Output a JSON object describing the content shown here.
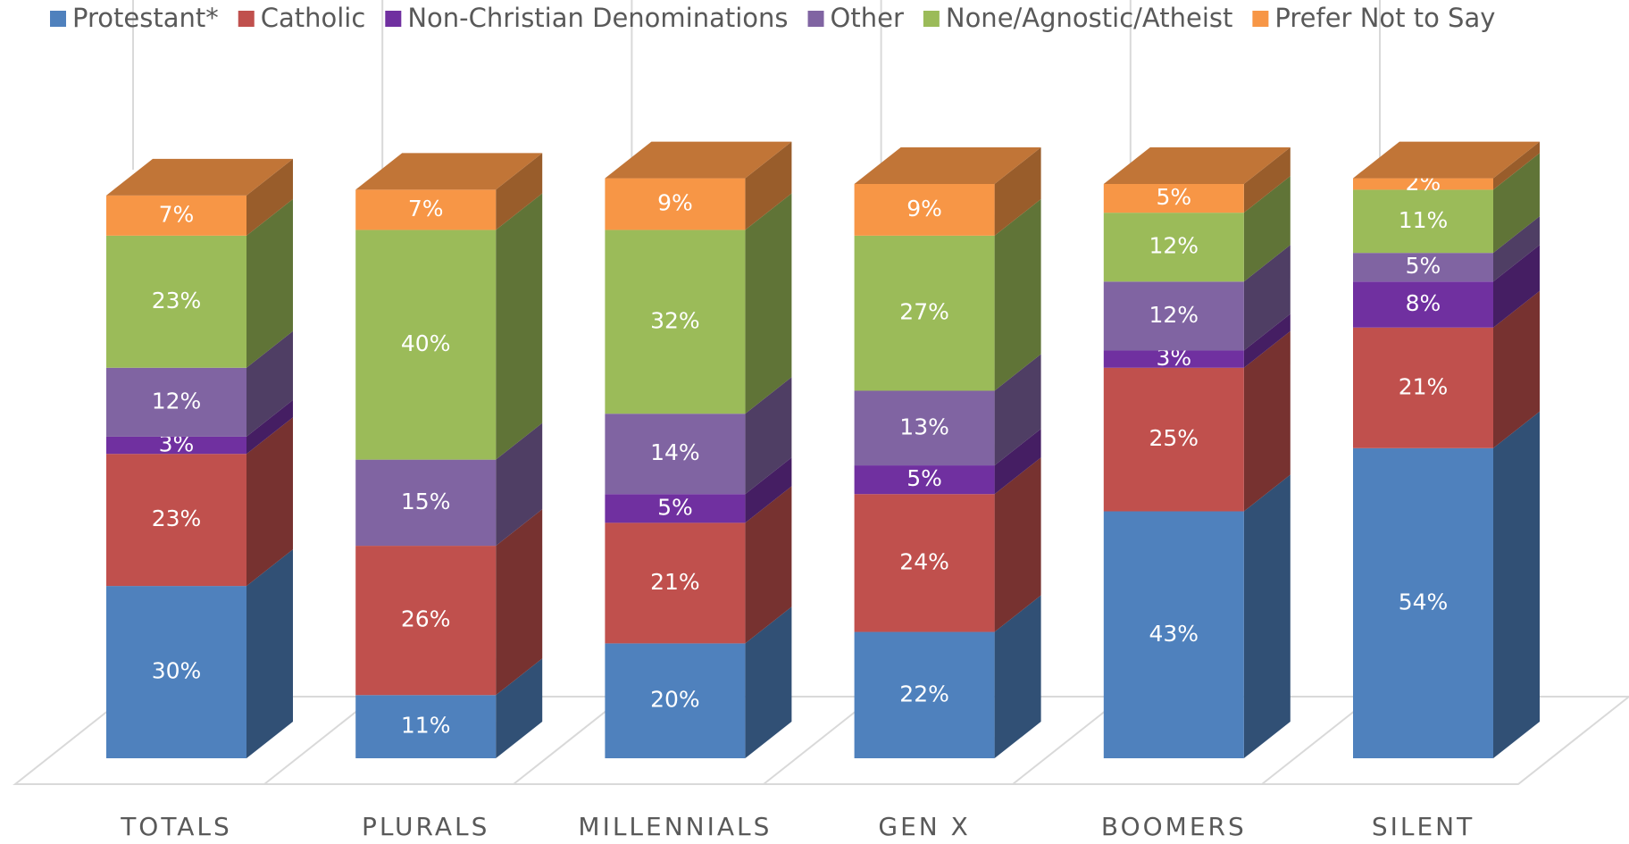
{
  "chart_data": {
    "type": "bar",
    "stacked": true,
    "categories": [
      "TOTALS",
      "PLURALS",
      "MILLENNIALS",
      "GEN X",
      "BOOMERS",
      "SILENT"
    ],
    "series": [
      {
        "name": "Protestant*",
        "color": "#4f81bd",
        "values": [
          30,
          11,
          20,
          22,
          43,
          54
        ],
        "value_labels": [
          "30%",
          "11%",
          "20%",
          "22%",
          "43%",
          "54%"
        ]
      },
      {
        "name": "Catholic",
        "color": "#c0504d",
        "values": [
          23,
          26,
          21,
          24,
          25,
          21
        ],
        "value_labels": [
          "23%",
          "26%",
          "21%",
          "24%",
          "25%",
          "21%"
        ]
      },
      {
        "name": "Non-Christian Denominations",
        "color": "#7030a0",
        "values": [
          3,
          null,
          5,
          5,
          3,
          8
        ],
        "value_labels": [
          "3%",
          null,
          "5%",
          "5%",
          "3%",
          "8%"
        ]
      },
      {
        "name": "Other",
        "color": "#8064a2",
        "values": [
          12,
          15,
          14,
          13,
          12,
          5
        ],
        "value_labels": [
          "12%",
          "15%",
          "14%",
          "13%",
          "12%",
          "5%"
        ]
      },
      {
        "name": "None/Agnostic/Atheist",
        "color": "#9bbb59",
        "values": [
          23,
          40,
          32,
          27,
          12,
          11
        ],
        "value_labels": [
          "23%",
          "40%",
          "32%",
          "27%",
          "12%",
          "11%"
        ]
      },
      {
        "name": "Prefer Not to Say",
        "color": "#f79646",
        "values": [
          7,
          7,
          9,
          9,
          5,
          2
        ],
        "value_labels": [
          "7%",
          "7%",
          "9%",
          "9%",
          "5%",
          "2%"
        ]
      }
    ],
    "legend": "top"
  }
}
